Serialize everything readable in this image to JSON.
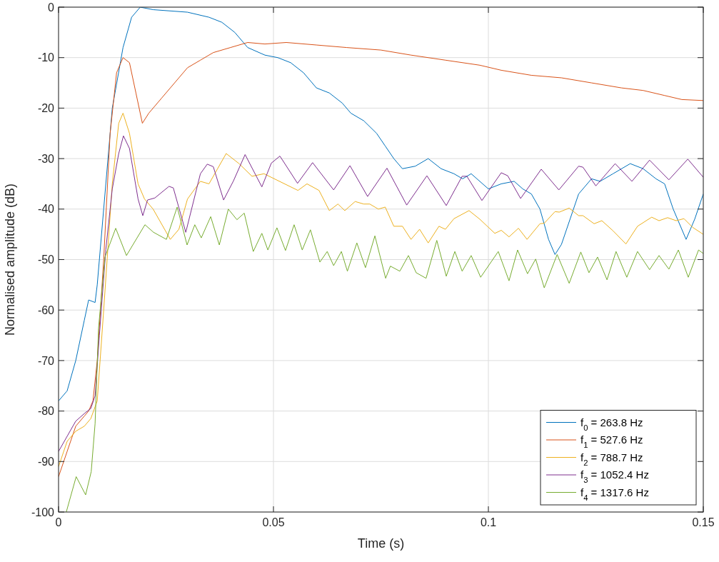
{
  "chart_data": {
    "type": "line",
    "xlabel": "Time (s)",
    "ylabel": "Normalised amplitude (dB)",
    "xlim": [
      0,
      0.15
    ],
    "ylim": [
      -100,
      0
    ],
    "xticks": [
      0,
      0.05,
      0.1,
      0.15
    ],
    "yticks": [
      -100,
      -90,
      -80,
      -70,
      -60,
      -50,
      -40,
      -30,
      -20,
      -10,
      0
    ],
    "grid": true,
    "legend": "bottom right",
    "line_style": "solid",
    "marker": "none",
    "series": [
      {
        "name": "f$_{0}$ = 263.8 Hz",
        "color": "#0072bd",
        "x": [
          0,
          0.002,
          0.004,
          0.006,
          0.007,
          0.0085,
          0.009,
          0.0105,
          0.0125,
          0.015,
          0.017,
          0.019,
          0.022,
          0.03,
          0.035,
          0.038,
          0.041,
          0.044,
          0.048,
          0.051,
          0.054,
          0.057,
          0.06,
          0.063,
          0.066,
          0.068,
          0.071,
          0.074,
          0.076,
          0.078,
          0.08,
          0.083,
          0.086,
          0.089,
          0.092,
          0.094,
          0.096,
          0.1,
          0.103,
          0.106,
          0.108,
          0.11,
          0.112,
          0.114,
          0.1155,
          0.117,
          0.119,
          0.121,
          0.124,
          0.126,
          0.129,
          0.133,
          0.136,
          0.139,
          0.141,
          0.143,
          0.146,
          0.148,
          0.15
        ],
        "values": [
          -78,
          -76,
          -70,
          -62,
          -58,
          -58.5,
          -55,
          -40,
          -20,
          -8,
          -2,
          0,
          -0.5,
          -1,
          -2,
          -3,
          -5,
          -8,
          -9.5,
          -10,
          -11,
          -13,
          -16,
          -17,
          -19,
          -21,
          -22.5,
          -25,
          -27.5,
          -30,
          -32,
          -31.5,
          -30,
          -32,
          -33,
          -34,
          -33,
          -36,
          -35,
          -34.5,
          -36,
          -37,
          -40,
          -46,
          -49,
          -47,
          -42,
          -37,
          -34,
          -34.5,
          -33,
          -31,
          -32,
          -34,
          -35,
          -40,
          -46,
          -42,
          -37
        ]
      },
      {
        "name": "f$_{1}$ = 527.6 Hz",
        "color": "#d95319",
        "x": [
          0,
          0.002,
          0.004,
          0.006,
          0.007,
          0.008,
          0.009,
          0.0105,
          0.012,
          0.0135,
          0.015,
          0.0165,
          0.018,
          0.0195,
          0.021,
          0.024,
          0.027,
          0.03,
          0.033,
          0.036,
          0.04,
          0.044,
          0.048,
          0.053,
          0.06,
          0.067,
          0.075,
          0.082,
          0.09,
          0.098,
          0.103,
          0.11,
          0.117,
          0.124,
          0.131,
          0.136,
          0.141,
          0.145,
          0.15
        ],
        "values": [
          -93,
          -88,
          -83,
          -81,
          -80,
          -78,
          -70,
          -50,
          -25,
          -13,
          -10,
          -11,
          -17,
          -23,
          -21,
          -18,
          -15,
          -12,
          -10.5,
          -9,
          -8,
          -7,
          -7.3,
          -7,
          -7.5,
          -8,
          -8.5,
          -9.5,
          -10.5,
          -11.5,
          -12.5,
          -13.5,
          -14,
          -15,
          -16,
          -16.5,
          -17.5,
          -18.3,
          -18.5
        ]
      },
      {
        "name": "f$_{2}$ = 788.7 Hz",
        "color": "#edb120",
        "x": [
          0,
          0.002,
          0.004,
          0.006,
          0.0075,
          0.009,
          0.0105,
          0.0125,
          0.014,
          0.015,
          0.0165,
          0.0185,
          0.02,
          0.022,
          0.024,
          0.026,
          0.028,
          0.03,
          0.033,
          0.035,
          0.037,
          0.039,
          0.042,
          0.045,
          0.0478,
          0.0557,
          0.0578,
          0.0606,
          0.063,
          0.065,
          0.0666,
          0.069,
          0.071,
          0.0724,
          0.0744,
          0.076,
          0.078,
          0.08,
          0.082,
          0.084,
          0.086,
          0.0885,
          0.09,
          0.092,
          0.0955,
          0.098,
          0.1015,
          0.103,
          0.1048,
          0.107,
          0.109,
          0.112,
          0.113,
          0.1155,
          0.1165,
          0.1188,
          0.121,
          0.122,
          0.1246,
          0.1264,
          0.129,
          0.132,
          0.1347,
          0.138,
          0.1397,
          0.1417,
          0.1437,
          0.1455,
          0.1475,
          0.15
        ],
        "values": [
          -91,
          -86,
          -84,
          -83,
          -81.5,
          -78,
          -60,
          -35,
          -23,
          -21,
          -25,
          -35,
          -38,
          -40,
          -43,
          -46,
          -44,
          -38,
          -34.5,
          -35,
          -32,
          -29,
          -31,
          -33.5,
          -33,
          -36.3,
          -35,
          -36.3,
          -40.3,
          -39,
          -40.3,
          -38.5,
          -39,
          -39,
          -40,
          -39.6,
          -43.4,
          -43.4,
          -46,
          -44,
          -46.7,
          -43.4,
          -44,
          -41.9,
          -40.3,
          -42,
          -44.8,
          -44.2,
          -45.5,
          -43.8,
          -46,
          -42.9,
          -42.8,
          -40.5,
          -40.6,
          -39.8,
          -41.3,
          -41.3,
          -42.9,
          -42.3,
          -44.3,
          -46.9,
          -43.4,
          -41.6,
          -42.3,
          -41.7,
          -42.3,
          -41.9,
          -43.6,
          -45
        ]
      },
      {
        "name": "f$_{3}$ = 1052.4 Hz",
        "color": "#7e2f8e",
        "x": [
          0,
          0.002,
          0.004,
          0.006,
          0.0075,
          0.0085,
          0.0095,
          0.011,
          0.0125,
          0.014,
          0.0151,
          0.0165,
          0.0185,
          0.0196,
          0.0207,
          0.0224,
          0.0257,
          0.0267,
          0.0296,
          0.033,
          0.0346,
          0.036,
          0.0384,
          0.0407,
          0.0434,
          0.0473,
          0.0495,
          0.0515,
          0.0556,
          0.0591,
          0.064,
          0.0678,
          0.0719,
          0.0764,
          0.081,
          0.0857,
          0.0902,
          0.0939,
          0.095,
          0.0985,
          0.103,
          0.1045,
          0.1075,
          0.1123,
          0.1164,
          0.121,
          0.122,
          0.125,
          0.1295,
          0.1334,
          0.1375,
          0.142,
          0.1464,
          0.15
        ],
        "values": [
          -88,
          -85,
          -82,
          -80.5,
          -79.5,
          -77,
          -65,
          -48,
          -36,
          -29,
          -25.5,
          -28,
          -38,
          -41.3,
          -38.2,
          -37.8,
          -35.5,
          -35.8,
          -44.6,
          -33,
          -31.1,
          -31.6,
          -38.2,
          -34.4,
          -29.2,
          -35.6,
          -30.9,
          -29.5,
          -34.9,
          -30.8,
          -36.2,
          -31.4,
          -37.5,
          -31.9,
          -39.2,
          -33.4,
          -39.3,
          -33.5,
          -33.5,
          -38.3,
          -32.8,
          -33.4,
          -37.9,
          -32.1,
          -36.2,
          -31.5,
          -31.7,
          -35.4,
          -31,
          -34.5,
          -30.3,
          -34.2,
          -30.1,
          -33.7
        ]
      },
      {
        "name": "f$_{4}$ = 1317.6 Hz",
        "color": "#77ac30",
        "x": [
          0.0018,
          0.0041,
          0.0063,
          0.0076,
          0.0085,
          0.0093,
          0.0108,
          0.0133,
          0.0158,
          0.0201,
          0.0221,
          0.0251,
          0.0276,
          0.0299,
          0.0317,
          0.0332,
          0.0354,
          0.0374,
          0.0395,
          0.0415,
          0.0432,
          0.0453,
          0.0473,
          0.0487,
          0.0508,
          0.0528,
          0.0548,
          0.0567,
          0.0586,
          0.0608,
          0.0625,
          0.064,
          0.0658,
          0.0672,
          0.0694,
          0.0714,
          0.0736,
          0.0761,
          0.0772,
          0.0794,
          0.0814,
          0.0832,
          0.0855,
          0.088,
          0.0902,
          0.0922,
          0.0939,
          0.096,
          0.0982,
          0.1023,
          0.1048,
          0.1068,
          0.1091,
          0.111,
          0.113,
          0.116,
          0.1188,
          0.1215,
          0.1234,
          0.1254,
          0.1276,
          0.1297,
          0.1322,
          0.1347,
          0.1375,
          0.1397,
          0.142,
          0.1442,
          0.1465,
          0.1489,
          0.15
        ],
        "values": [
          -100,
          -93,
          -96.6,
          -92,
          -82.5,
          -63.6,
          -49.5,
          -43.8,
          -49.2,
          -43.1,
          -44.6,
          -46,
          -39.6,
          -47.1,
          -43.1,
          -45.7,
          -41.5,
          -47.1,
          -40,
          -42.1,
          -40.8,
          -48.4,
          -44.8,
          -48.1,
          -43.7,
          -48.2,
          -43.1,
          -48.1,
          -44.1,
          -50.5,
          -48.4,
          -51.2,
          -48.4,
          -52.3,
          -46.7,
          -51.6,
          -45.3,
          -53.7,
          -51.3,
          -52.3,
          -49.2,
          -52.6,
          -53.7,
          -46.2,
          -53.3,
          -48.4,
          -52.3,
          -49.2,
          -53.5,
          -48.4,
          -54.2,
          -48.1,
          -52.8,
          -49.9,
          -55.6,
          -49,
          -54.7,
          -48.5,
          -52.6,
          -49.5,
          -54,
          -48.4,
          -53.5,
          -48.4,
          -52,
          -49.2,
          -51.9,
          -48.1,
          -53.5,
          -48.1,
          -48.8
        ]
      }
    ]
  }
}
